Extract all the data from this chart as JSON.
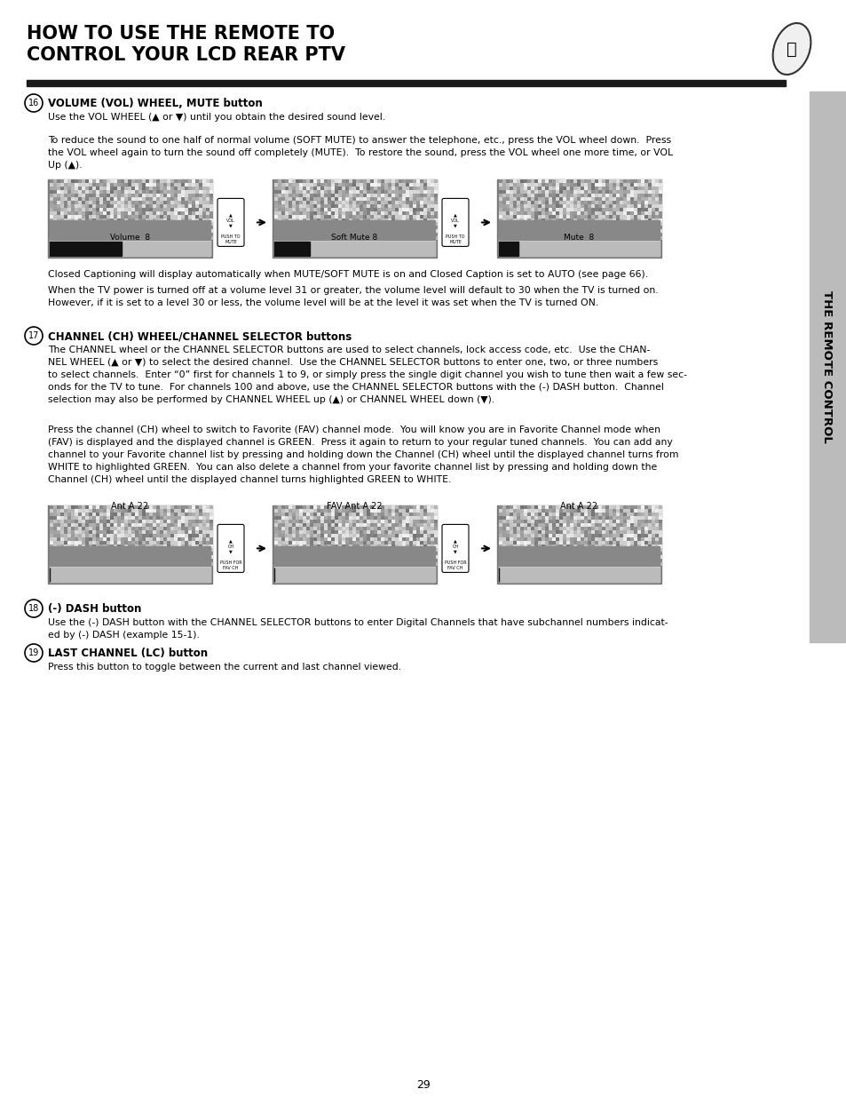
{
  "title_line1": "HOW TO USE THE REMOTE TO",
  "title_line2": "CONTROL YOUR LCD REAR PTV",
  "sidebar_text": "THE REMOTE CONTROL",
  "page_number": "29",
  "bg_color": "#ffffff",
  "title_bar_color": "#1a1a1a",
  "sidebar_bg": "#cccccc",
  "section16_header": "VOLUME (VOL) WHEEL, MUTE button",
  "section16_text1": "Use the VOL WHEEL (▲ or ▼) until you obtain the desired sound level.",
  "section16_text2": "To reduce the sound to one half of normal volume (SOFT MUTE) to answer the telephone, etc., press the VOL wheel down.  Press\nthe VOL wheel again to turn the sound off completely (MUTE).  To restore the sound, press the VOL wheel one more time, or VOL\nUp (▲).",
  "vol_labels": [
    "Volume  8",
    "Soft Mute 8",
    "Mute  8"
  ],
  "section16_text3": "Closed Captioning will display automatically when MUTE/SOFT MUTE is on and Closed Caption is set to AUTO (see page 66).",
  "section16_text4": "When the TV power is turned off at a volume level 31 or greater, the volume level will default to 30 when the TV is turned on.\nHowever, if it is set to a level 30 or less, the volume level will be at the level it was set when the TV is turned ON.",
  "section17_header": "CHANNEL (CH) WHEEL/CHANNEL SELECTOR buttons",
  "section17_text1": "The CHANNEL wheel or the CHANNEL SELECTOR buttons are used to select channels, lock access code, etc.  Use the CHAN-\nNEL WHEEL (▲ or ▼) to select the desired channel.  Use the CHANNEL SELECTOR buttons to enter one, two, or three numbers\nto select channels.  Enter “0” first for channels 1 to 9, or simply press the single digit channel you wish to tune then wait a few sec-\nonds for the TV to tune.  For channels 100 and above, use the CHANNEL SELECTOR buttons with the (-) DASH button.  Channel\nselection may also be performed by CHANNEL WHEEL up (▲) or CHANNEL WHEEL down (▼).",
  "section17_text2": "Press the channel (CH) wheel to switch to Favorite (FAV) channel mode.  You will know you are in Favorite Channel mode when\n(FAV) is displayed and the displayed channel is GREEN.  Press it again to return to your regular tuned channels.  You can add any\nchannel to your Favorite channel list by pressing and holding down the Channel (CH) wheel until the displayed channel turns from\nWHITE to highlighted GREEN.  You can also delete a channel from your favorite channel list by pressing and holding down the\nChannel (CH) wheel until the displayed channel turns highlighted GREEN to WHITE.",
  "ch_labels": [
    "Ant A 22",
    "FAV Ant A 22",
    "Ant A 22"
  ],
  "section18_header": "(-) DASH button",
  "section18_text": "Use the (-) DASH button with the CHANNEL SELECTOR buttons to enter Digital Channels that have subchannel numbers indicat-\ned by (-) DASH (example 15-1).",
  "section19_header": "LAST CHANNEL (LC) button",
  "section19_text": "Press this button to toggle between the current and last channel viewed."
}
